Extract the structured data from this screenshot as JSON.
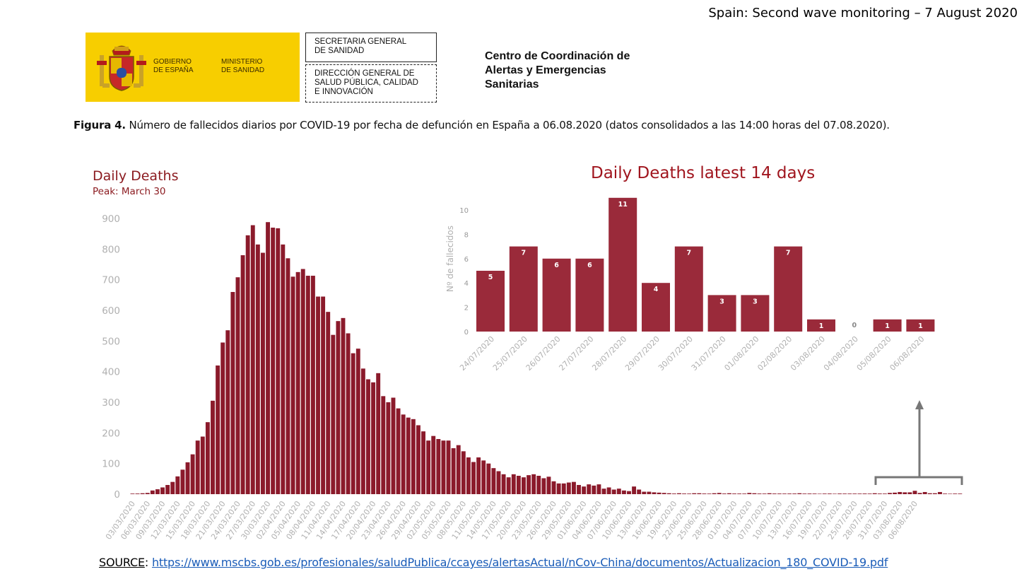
{
  "header": {
    "slide_title": "Spain:  Second wave monitoring – 7 August 2020",
    "gov_line_1": "GOBIERNO\nDE ESPAÑA",
    "gov_line_2": "MINISTERIO\nDE SANIDAD",
    "box_1": "SECRETARIA GENERAL\nDE SANIDAD",
    "box_2": "DIRECCIÓN GENERAL DE\nSALUD PÚBLICA, CALIDAD\nE INNOVACIÓN",
    "center_text": "Centro de Coordinación de\nAlertas y Emergencias\nSanitarias"
  },
  "figure": {
    "label": "Figura 4.",
    "caption": " Número de fallecidos diarios por COVID-19 por fecha de defunción en España a 06.08.2020 (datos consolidados a las 14:00 horas del 07.08.2020)."
  },
  "source": {
    "label": "SOURCE",
    "sep": ": ",
    "url": "https://www.mscbs.gob.es/profesionales/saludPublica/ccayes/alertasActual/nCov-China/documentos/Actualizacion_180_COVID-19.pdf"
  },
  "colors": {
    "bar": "#8b1a2b",
    "inset_bar": "#9a2a3a",
    "title": "#8b1a1f",
    "axis_text": "#b0b0b0",
    "annotation": "#777777"
  },
  "chart_data": [
    {
      "type": "bar",
      "title": "Daily Deaths",
      "subtitle": "Peak: March 30",
      "xlabel": "",
      "ylabel": "",
      "ylim": [
        0,
        900
      ],
      "yticks": [
        "0",
        "100",
        "200",
        "300",
        "400",
        "500",
        "600",
        "700",
        "800",
        "900"
      ],
      "start_date": "03/03/2020",
      "x_tick_labels": [
        "03/03/2020",
        "06/03/2020",
        "09/03/2020",
        "12/03/2020",
        "15/03/2020",
        "18/03/2020",
        "21/03/2020",
        "24/03/2020",
        "27/03/2020",
        "30/03/2020",
        "02/04/2020",
        "05/04/2020",
        "08/04/2020",
        "11/04/2020",
        "14/04/2020",
        "17/04/2020",
        "20/04/2020",
        "23/04/2020",
        "26/04/2020",
        "29/04/2020",
        "02/05/2020",
        "05/05/2020",
        "08/05/2020",
        "11/05/2020",
        "14/05/2020",
        "17/05/2020",
        "20/05/2020",
        "23/05/2020",
        "26/05/2020",
        "29/05/2020",
        "01/06/2020",
        "04/06/2020",
        "07/06/2020",
        "10/06/2020",
        "13/06/2020",
        "16/06/2020",
        "19/06/2020",
        "22/06/2020",
        "25/06/2020",
        "28/06/2020",
        "01/07/2020",
        "04/07/2020",
        "07/07/2020",
        "10/07/2020",
        "13/07/2020",
        "16/07/2020",
        "19/07/2020",
        "22/07/2020",
        "25/07/2020",
        "28/07/2020",
        "31/07/2020",
        "03/08/2020",
        "06/08/2020"
      ],
      "values": [
        1,
        2,
        3,
        4,
        12,
        16,
        22,
        30,
        40,
        58,
        80,
        104,
        130,
        175,
        188,
        235,
        305,
        420,
        495,
        535,
        660,
        708,
        780,
        845,
        878,
        815,
        788,
        888,
        870,
        868,
        815,
        770,
        710,
        725,
        735,
        713,
        713,
        645,
        645,
        595,
        520,
        565,
        575,
        525,
        460,
        475,
        410,
        375,
        365,
        395,
        320,
        300,
        315,
        280,
        260,
        250,
        245,
        225,
        205,
        175,
        190,
        180,
        175,
        175,
        150,
        160,
        140,
        120,
        105,
        120,
        110,
        100,
        85,
        75,
        65,
        55,
        65,
        60,
        55,
        62,
        65,
        60,
        52,
        57,
        42,
        35,
        35,
        38,
        40,
        30,
        25,
        32,
        28,
        32,
        18,
        22,
        15,
        18,
        12,
        10,
        25,
        15,
        8,
        8,
        6,
        5,
        4,
        3,
        2,
        3,
        2,
        1,
        3,
        3,
        2,
        1,
        3,
        4,
        2,
        3,
        2,
        2,
        1,
        4,
        3,
        2,
        1,
        3,
        2,
        2,
        1,
        2,
        2,
        3,
        1,
        2,
        1,
        0,
        1,
        2,
        0,
        2,
        1,
        1,
        1,
        1,
        2,
        1,
        3,
        2,
        1,
        4,
        5,
        7,
        6,
        6,
        11,
        4,
        7,
        3,
        3,
        7,
        1,
        0,
        1,
        1
      ]
    },
    {
      "type": "bar",
      "title": "Daily Deaths latest 14 days",
      "xlabel": "",
      "ylabel": "Nº de fallecidos",
      "ylim": [
        0,
        10
      ],
      "yticks": [
        "0",
        "2",
        "4",
        "6",
        "8",
        "10"
      ],
      "categories": [
        "24/07/2020",
        "25/07/2020",
        "26/07/2020",
        "27/07/2020",
        "28/07/2020",
        "29/07/2020",
        "30/07/2020",
        "31/07/2020",
        "01/08/2020",
        "02/08/2020",
        "03/08/2020",
        "04/08/2020",
        "05/08/2020",
        "06/08/2020"
      ],
      "values": [
        5,
        7,
        6,
        6,
        11,
        4,
        7,
        3,
        3,
        7,
        1,
        0,
        1,
        1
      ],
      "data_labels": [
        "5",
        "7",
        "6",
        "6",
        "11",
        "4",
        "7",
        "3",
        "3",
        "7",
        "1",
        "0",
        "1",
        "1"
      ]
    }
  ]
}
